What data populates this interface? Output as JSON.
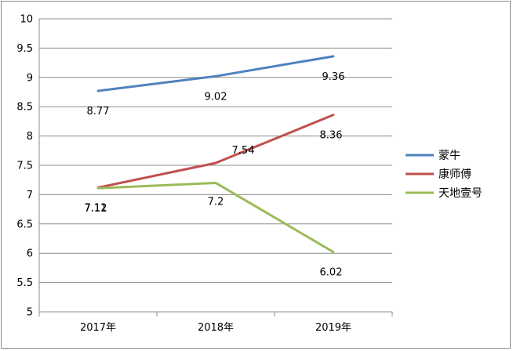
{
  "chart_data": {
    "type": "line",
    "categories": [
      "2017年",
      "2018年",
      "2019年"
    ],
    "series": [
      {
        "name": "蒙牛",
        "values": [
          8.77,
          9.02,
          9.36
        ],
        "labels": [
          "8.77",
          "9.02",
          "9.36"
        ],
        "color": "#4f81bd"
      },
      {
        "name": "康师傅",
        "values": [
          7.12,
          7.54,
          8.36
        ],
        "labels": [
          "7.12",
          "7.54",
          "8.36"
        ],
        "color": "#c0504d"
      },
      {
        "name": "天地壹号",
        "values": [
          7.11,
          7.2,
          6.02
        ],
        "labels": [
          "7.11",
          "7.2",
          "6.02"
        ],
        "color": "#9bbb59"
      }
    ],
    "yticks": [
      "5",
      "5.5",
      "6",
      "6.5",
      "7",
      "7.5",
      "8",
      "8.5",
      "9",
      "9.5",
      "10"
    ],
    "ylim": [
      5,
      10
    ],
    "grid": true,
    "legend": "right",
    "title": "",
    "xlabel": "",
    "ylabel": ""
  }
}
